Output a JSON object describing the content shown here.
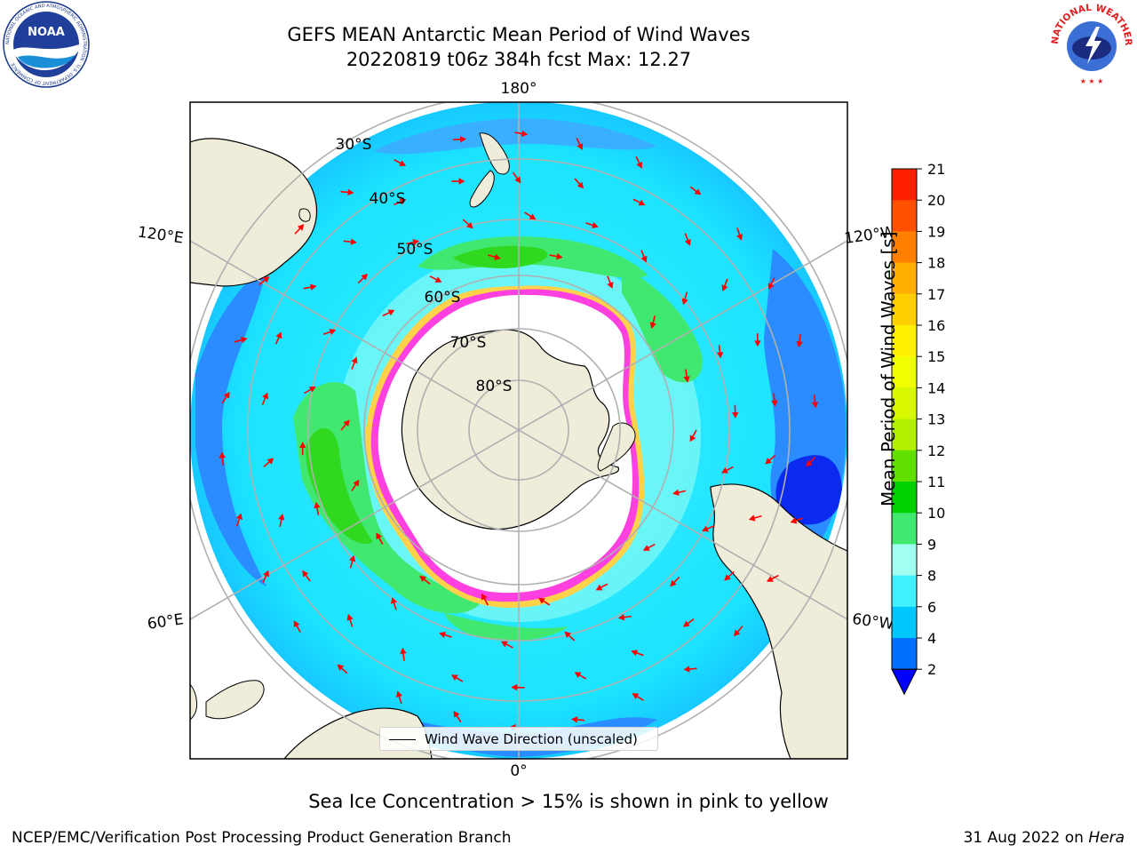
{
  "header": {
    "title_line1": "GEFS MEAN Antarctic Mean Period of Wind Waves",
    "title_line2": "20220819 t06z 384h fcst   Max: 12.27"
  },
  "logos": {
    "left_icon": "noaa-logo-icon",
    "left_text": "NOAA",
    "left_ring_text": "NATIONAL OCEANIC AND ATMOSPHERIC ADMINISTRATION · U.S. DEPARTMENT OF COMMERCE",
    "right_icon": "national-weather-service-logo-icon",
    "right_ring_text": "NATIONAL WEATHER SERVICE"
  },
  "map": {
    "projection": "south-polar-stereographic",
    "lon_labels": {
      "top": "180°",
      "bottom": "0°",
      "upper_left": "120°E",
      "upper_right": "120°W",
      "lower_left": "60°E",
      "lower_right": "60°W"
    },
    "lat_labels": [
      "30°S",
      "40°S",
      "50°S",
      "60°S",
      "70°S",
      "80°S"
    ],
    "legend_label": "Wind Wave Direction (unscaled)",
    "colors": {
      "land": "#efedda",
      "ice_edge_pink": "#ff40e0",
      "ice_edge_yellow": "#ffd24a",
      "arrow": "#ff0000",
      "grid": "#b0b0b0"
    }
  },
  "colorbar": {
    "label": "Mean Period of Wind Waves [s]",
    "ticks": [
      "2",
      "4",
      "6",
      "8",
      "9",
      "10",
      "11",
      "12",
      "13",
      "14",
      "15",
      "16",
      "17",
      "18",
      "19",
      "20",
      "21"
    ],
    "colors": [
      "#0070ff",
      "#00c8ff",
      "#40f0ff",
      "#a0fff0",
      "#40e870",
      "#00d000",
      "#60e000",
      "#b0f000",
      "#d8f800",
      "#f0ff00",
      "#fff000",
      "#ffd000",
      "#ffb000",
      "#ff8000",
      "#ff5000",
      "#ff2000"
    ],
    "extend_color": "#0000ff"
  },
  "footnote": "Sea Ice Concentration > 15% is shown in pink to yellow",
  "credits": {
    "left": "NCEP/EMC/Verification Post Processing Product Generation Branch",
    "right_date": "31 Aug 2022 on ",
    "right_host": "Hera"
  }
}
